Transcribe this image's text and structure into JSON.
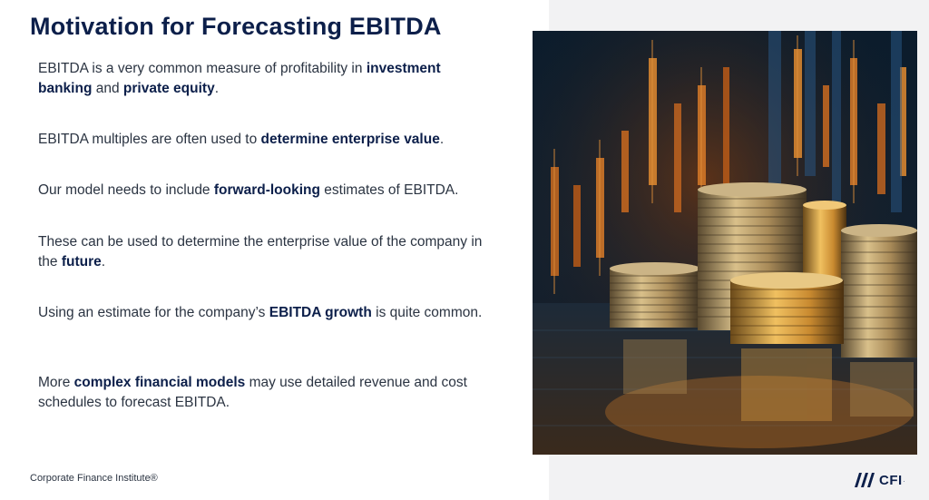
{
  "slide": {
    "title": "Motivation for Forecasting EBITDA",
    "paragraphs": [
      [
        {
          "t": "EBITDA is a very common measure of profitability in ",
          "b": false
        },
        {
          "t": "investment banking",
          "b": true
        },
        {
          "t": " and ",
          "b": false
        },
        {
          "t": "private equity",
          "b": true
        },
        {
          "t": ".",
          "b": false
        }
      ],
      [
        {
          "t": "EBITDA multiples are often used to ",
          "b": false
        },
        {
          "t": "determine enterprise value",
          "b": true
        },
        {
          "t": ".",
          "b": false
        }
      ],
      [
        {
          "t": "Our model needs to include ",
          "b": false
        },
        {
          "t": "forward-looking",
          "b": true
        },
        {
          "t": " estimates of EBITDA.",
          "b": false
        }
      ],
      [
        {
          "t": "These can be used to determine the enterprise value of the company in the ",
          "b": false
        },
        {
          "t": "future",
          "b": true
        },
        {
          "t": ".",
          "b": false
        }
      ],
      [
        {
          "t": "Using an estimate for the company’s ",
          "b": false
        },
        {
          "t": "EBITDA growth",
          "b": true
        },
        {
          "t": " is quite common.",
          "b": false
        }
      ],
      [
        {
          "t": "More ",
          "b": false
        },
        {
          "t": "complex financial models",
          "b": true
        },
        {
          "t": " may use detailed revenue and cost schedules to forecast EBITDA.",
          "b": false
        }
      ]
    ]
  },
  "footer": {
    "company": "Corporate Finance Institute®",
    "logo_text": "CFI",
    "logo_reg": "."
  },
  "colors": {
    "navy": "#0c1f4a",
    "text": "#2b3442",
    "panel": "#f2f2f3",
    "orange": "#e8842a"
  }
}
